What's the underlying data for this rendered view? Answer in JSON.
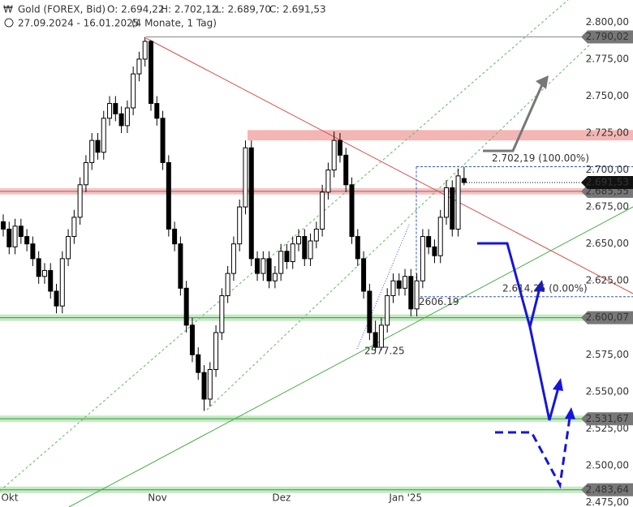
{
  "chart_data": {
    "type": "candlestick",
    "header": {
      "title": "Gold (FOREX, Bid)",
      "open": "O: 2.694,22",
      "high": "H: 2.702,12",
      "low": "L: 2.689,70",
      "close": "C: 2.691,53",
      "range": "27.09.2024 - 16.01.2025",
      "period": "(4 Monate, 1 Tag)"
    },
    "categories": [
      "Okt",
      null,
      null,
      null,
      null,
      null,
      null,
      null,
      null,
      null,
      null,
      null,
      null,
      null,
      null,
      null,
      null,
      null,
      null,
      null,
      null,
      null,
      null,
      null,
      null,
      "Nov",
      null,
      null,
      null,
      null,
      null,
      null,
      null,
      null,
      null,
      null,
      null,
      null,
      null,
      null,
      null,
      null,
      null,
      null,
      null,
      null,
      "Dez",
      null,
      null,
      null,
      null,
      null,
      null,
      null,
      null,
      null,
      null,
      null,
      null,
      null,
      null,
      null,
      null,
      null,
      null,
      null,
      null,
      "Jan '25",
      null,
      null,
      null,
      null,
      null,
      null,
      null,
      null,
      null,
      null,
      null
    ],
    "open": [
      2665,
      2660,
      2648,
      2662,
      2655,
      2650,
      2640,
      2628,
      2632,
      2618,
      2608,
      2640,
      2655,
      2668,
      2690,
      2705,
      2720,
      2712,
      2735,
      2745,
      2738,
      2730,
      2742,
      2765,
      2775,
      2787,
      2745,
      2735,
      2705,
      2660,
      2650,
      2620,
      2595,
      2575,
      2563,
      2545,
      2565,
      2590,
      2615,
      2630,
      2650,
      2675,
      2715,
      2640,
      2630,
      2640,
      2625,
      2630,
      2645,
      2638,
      2650,
      2655,
      2640,
      2652,
      2660,
      2685,
      2700,
      2720,
      2710,
      2690,
      2655,
      2640,
      2618,
      2590,
      2580,
      2595,
      2615,
      2625,
      2620,
      2628,
      2606,
      2625,
      2655,
      2648,
      2642,
      2668,
      2688,
      2660,
      2694.22
    ],
    "high": [
      2670,
      2665,
      2667,
      2667,
      2660,
      2655,
      2645,
      2637,
      2637,
      2623,
      2645,
      2660,
      2673,
      2695,
      2710,
      2725,
      2725,
      2740,
      2750,
      2750,
      2743,
      2747,
      2770,
      2780,
      2790,
      2788,
      2750,
      2740,
      2710,
      2665,
      2655,
      2625,
      2600,
      2580,
      2568,
      2570,
      2595,
      2620,
      2635,
      2655,
      2680,
      2720,
      2720,
      2645,
      2645,
      2645,
      2635,
      2650,
      2650,
      2655,
      2660,
      2660,
      2657,
      2665,
      2690,
      2705,
      2726,
      2725,
      2715,
      2695,
      2660,
      2645,
      2623,
      2598,
      2600,
      2620,
      2630,
      2630,
      2633,
      2633,
      2630,
      2660,
      2660,
      2653,
      2673,
      2693,
      2693,
      2701,
      2702.12
    ],
    "low": [
      2655,
      2643,
      2643,
      2650,
      2645,
      2635,
      2623,
      2623,
      2613,
      2603,
      2603,
      2635,
      2650,
      2663,
      2685,
      2700,
      2707,
      2707,
      2730,
      2733,
      2725,
      2725,
      2737,
      2760,
      2770,
      2740,
      2730,
      2700,
      2655,
      2645,
      2615,
      2590,
      2570,
      2558,
      2537,
      2540,
      2560,
      2585,
      2610,
      2625,
      2645,
      2670,
      2635,
      2625,
      2625,
      2620,
      2620,
      2625,
      2633,
      2633,
      2645,
      2635,
      2635,
      2647,
      2655,
      2680,
      2695,
      2705,
      2685,
      2650,
      2635,
      2613,
      2585,
      2577.25,
      2578,
      2590,
      2610,
      2615,
      2615,
      2601,
      2601,
      2620,
      2643,
      2637,
      2637,
      2663,
      2655,
      2655,
      2689.7
    ],
    "close": [
      2660,
      2648,
      2662,
      2655,
      2650,
      2640,
      2628,
      2632,
      2618,
      2608,
      2640,
      2655,
      2668,
      2690,
      2705,
      2720,
      2712,
      2735,
      2745,
      2738,
      2730,
      2742,
      2765,
      2775,
      2787,
      2745,
      2735,
      2705,
      2660,
      2650,
      2620,
      2595,
      2575,
      2563,
      2545,
      2565,
      2590,
      2615,
      2630,
      2650,
      2675,
      2715,
      2640,
      2630,
      2640,
      2625,
      2630,
      2645,
      2638,
      2650,
      2655,
      2640,
      2652,
      2660,
      2685,
      2700,
      2720,
      2710,
      2690,
      2655,
      2640,
      2618,
      2590,
      2580,
      2595,
      2615,
      2625,
      2620,
      2628,
      2606,
      2625,
      2655,
      2648,
      2642,
      2668,
      2688,
      2660,
      2696,
      2691.53
    ],
    "ylim": [
      2472,
      2815
    ],
    "yticks": [
      {
        "value": 2475,
        "label": "2.475,00"
      },
      {
        "value": 2500,
        "label": "2.500,00"
      },
      {
        "value": 2525,
        "label": "2.525,00"
      },
      {
        "value": 2550,
        "label": "2.550,00"
      },
      {
        "value": 2575,
        "label": "2.575,00"
      },
      {
        "value": 2600,
        "label": "2.600,00"
      },
      {
        "value": 2625,
        "label": "2.625,00"
      },
      {
        "value": 2650,
        "label": "2.650,00"
      },
      {
        "value": 2675,
        "label": "2.675,00"
      },
      {
        "value": 2700,
        "label": "2.700,00"
      },
      {
        "value": 2725,
        "label": "2.725,00"
      },
      {
        "value": 2750,
        "label": "2.750,00"
      },
      {
        "value": 2775,
        "label": "2.775,00"
      },
      {
        "value": 2800,
        "label": "2.800,00"
      }
    ],
    "levels": [
      {
        "value": 2790.02,
        "label": "2.790,02",
        "color": "#888888"
      },
      {
        "value": 2685.55,
        "label": "2.685,55",
        "color": "#e08080"
      },
      {
        "value": 2600.07,
        "label": "2.600,07",
        "color": "#7fcf7f"
      },
      {
        "value": 2531.67,
        "label": "2.531,67",
        "color": "#7fcf7f"
      },
      {
        "value": 2483.64,
        "label": "2.483,64",
        "color": "#7fcf7f"
      }
    ],
    "last_price": {
      "value": 2691.53,
      "label": "2.691,53"
    },
    "resistance_zone": [
      2720,
      2727
    ],
    "fib": [
      {
        "value": 2702.19,
        "label": "2.702,19 (100.00%)"
      },
      {
        "value": 2614.25,
        "label": "2.614,25 (0.00%)"
      }
    ],
    "point_labels": [
      2606.19,
      2577.25
    ]
  }
}
